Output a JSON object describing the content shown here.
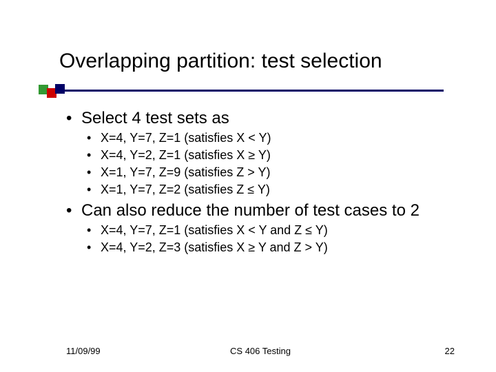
{
  "title": "Overlapping partition: test selection",
  "decoration": {
    "squares": [
      "#339933",
      "#cc0000",
      "#000066"
    ],
    "rule_color": "#000066"
  },
  "bullets_l1_a": "Select 4 test sets as",
  "sub_a": [
    "X=4, Y=7, Z=1 (satisfies X < Y)",
    "X=4, Y=2, Z=1 (satisfies X ≥ Y)",
    "X=1, Y=7, Z=9 (satisfies Z > Y)",
    "X=1, Y=7, Z=2 (satisfies Z ≤ Y)"
  ],
  "bullets_l1_b": "Can also reduce the number of test cases to 2",
  "sub_b": [
    "X=4, Y=7, Z=1 (satisfies X < Y and Z ≤ Y)",
    "X=4, Y=2, Z=3 (satisfies X ≥ Y and Z > Y)"
  ],
  "footer": {
    "date": "11/09/99",
    "center": "CS 406 Testing",
    "page": "22"
  },
  "typography": {
    "title_fontsize": 30,
    "l1_fontsize": 24,
    "l2_fontsize": 18,
    "footer_fontsize": 13,
    "font_family": "Arial"
  },
  "colors": {
    "text": "#000000",
    "background": "#ffffff"
  }
}
